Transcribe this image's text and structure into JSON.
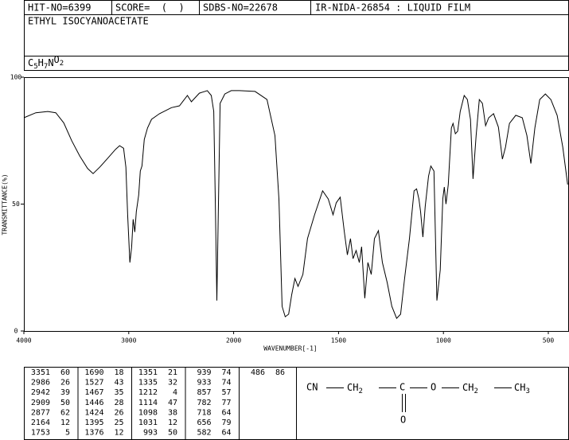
{
  "header": {
    "hit_no": "HIT-NO=6399",
    "score": "SCORE=  (  )",
    "sdbs_no": "SDBS-NO=22678",
    "method": "IR-NIDA-26854 : LIQUID FILM",
    "name": "ETHYL ISOCYANOACETATE",
    "formula": "C5H7NO2"
  },
  "chart_data": {
    "type": "line",
    "color": "#000000",
    "y_label": "TRANSMITTANCE(%)",
    "x_label": "WAVENUMBER[-1]",
    "xlim": [
      4000,
      400
    ],
    "ylim": [
      0,
      100
    ],
    "xticks": [
      4000,
      3000,
      2000,
      1500,
      1000,
      500
    ],
    "yticks": [
      0,
      50,
      100
    ],
    "x": [
      4000,
      3886,
      3772,
      3696,
      3620,
      3544,
      3468,
      3392,
      3340,
      3278,
      3202,
      3125,
      3087,
      3049,
      3027,
      3011,
      2989,
      2973,
      2958,
      2942,
      2928,
      2905,
      2890,
      2874,
      2852,
      2821,
      2783,
      2707,
      2593,
      2517,
      2441,
      2403,
      2327,
      2251,
      2213,
      2190,
      2175,
      2160,
      2144,
      2129,
      2084,
      2023,
      1973,
      1898,
      1841,
      1803,
      1784,
      1769,
      1754,
      1738,
      1723,
      1708,
      1693,
      1670,
      1648,
      1614,
      1576,
      1549,
      1526,
      1511,
      1492,
      1473,
      1458,
      1443,
      1431,
      1416,
      1401,
      1390,
      1375,
      1360,
      1344,
      1329,
      1310,
      1291,
      1268,
      1246,
      1223,
      1204,
      1185,
      1162,
      1140,
      1128,
      1117,
      1109,
      1098,
      1087,
      1071,
      1060,
      1045,
      1031,
      1015,
      1003,
      996,
      988,
      977,
      962,
      954,
      943,
      932,
      920,
      901,
      886,
      871,
      859,
      844,
      829,
      814,
      799,
      784,
      761,
      738,
      719,
      704,
      685,
      655,
      624,
      602,
      583,
      564,
      541,
      514,
      488,
      458,
      431,
      408
    ],
    "values": [
      84,
      86,
      86.5,
      86,
      82,
      75,
      69,
      64,
      62,
      64.5,
      68,
      71.6,
      73,
      72,
      64.5,
      45.8,
      27,
      33,
      44,
      39,
      47,
      53.6,
      63,
      65,
      75.5,
      80,
      83.4,
      85.6,
      88,
      88.7,
      92.8,
      90.3,
      93.7,
      94.7,
      92.8,
      86.5,
      52,
      12,
      52,
      89.7,
      93.4,
      94.7,
      94.7,
      94.4,
      91.2,
      77,
      52,
      9.7,
      5.6,
      6.6,
      14.4,
      20.7,
      17.6,
      22.3,
      36.4,
      45.8,
      55.2,
      52,
      45.8,
      50.5,
      52.7,
      39.5,
      30,
      36.4,
      28.5,
      31.7,
      27,
      33.2,
      12.9,
      27,
      22.3,
      36.4,
      39.5,
      27,
      19,
      9.7,
      5,
      6.6,
      20.7,
      36.4,
      55.2,
      56,
      52,
      47,
      37,
      49,
      61,
      65,
      63,
      12,
      24,
      52,
      56.7,
      50,
      57.7,
      80,
      81.8,
      77.7,
      78.7,
      86.5,
      92.8,
      91.2,
      83.4,
      59.9,
      77,
      91.2,
      89.7,
      80.9,
      84,
      85.6,
      80.3,
      67.7,
      72.4,
      81.8,
      85,
      84,
      77,
      66,
      80,
      91.2,
      93.4,
      91.2,
      85,
      72.4,
      57.7
    ]
  },
  "peaks": [
    [
      3351,
      60
    ],
    [
      2986,
      26
    ],
    [
      2942,
      39
    ],
    [
      2909,
      50
    ],
    [
      2877,
      62
    ],
    [
      2164,
      12
    ],
    [
      1753,
      5
    ],
    [
      1690,
      18
    ],
    [
      1527,
      43
    ],
    [
      1467,
      35
    ],
    [
      1446,
      28
    ],
    [
      1424,
      26
    ],
    [
      1395,
      25
    ],
    [
      1376,
      12
    ],
    [
      1351,
      21
    ],
    [
      1335,
      32
    ],
    [
      1212,
      4
    ],
    [
      1114,
      47
    ],
    [
      1098,
      38
    ],
    [
      1031,
      12
    ],
    [
      993,
      50
    ],
    [
      939,
      74
    ],
    [
      933,
      74
    ],
    [
      857,
      57
    ],
    [
      782,
      77
    ],
    [
      718,
      64
    ],
    [
      656,
      79
    ],
    [
      582,
      64
    ],
    [
      486,
      86
    ]
  ],
  "structure": {
    "groups": [
      "CN",
      "CH2",
      "C",
      "O",
      "CH2",
      "CH3"
    ],
    "carbonyl_o": "O"
  }
}
